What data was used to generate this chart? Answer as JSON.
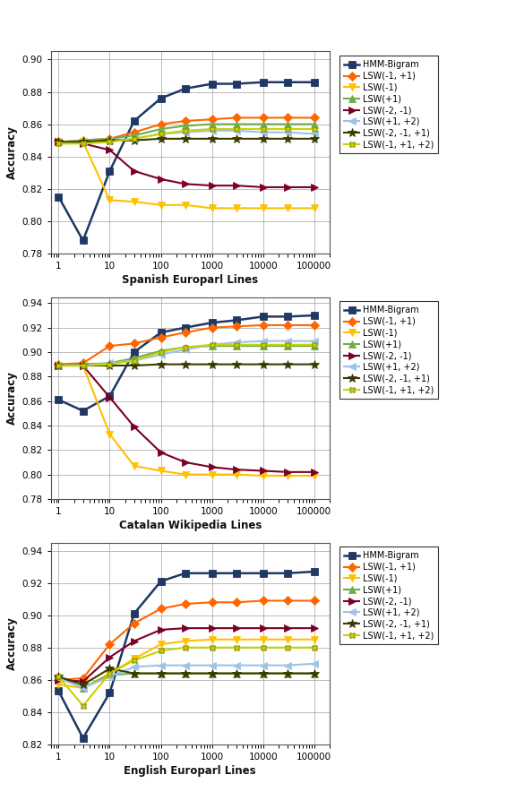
{
  "x_values": [
    1,
    3,
    10,
    30,
    100,
    300,
    1000,
    3000,
    10000,
    30000,
    100000
  ],
  "subplot1": {
    "xlabel": "Spanish Europarl Lines",
    "ylim": [
      0.78,
      0.905
    ],
    "yticks": [
      0.78,
      0.8,
      0.82,
      0.84,
      0.86,
      0.88,
      0.9
    ],
    "data": {
      "HMM-Bigram": [
        0.815,
        0.788,
        0.831,
        0.862,
        0.876,
        0.882,
        0.885,
        0.885,
        0.886,
        0.886,
        0.886
      ],
      "LSW(-1, +1)": [
        0.849,
        0.85,
        0.851,
        0.855,
        0.86,
        0.862,
        0.863,
        0.864,
        0.864,
        0.864,
        0.864
      ],
      "LSW(-1)": [
        0.849,
        0.849,
        0.813,
        0.812,
        0.81,
        0.81,
        0.808,
        0.808,
        0.808,
        0.808,
        0.808
      ],
      "LSW(+1)": [
        0.849,
        0.85,
        0.851,
        0.853,
        0.857,
        0.859,
        0.86,
        0.86,
        0.86,
        0.86,
        0.86
      ],
      "LSW(-2, -1)": [
        0.849,
        0.848,
        0.844,
        0.831,
        0.826,
        0.823,
        0.822,
        0.822,
        0.821,
        0.821,
        0.821
      ],
      "LSW(+1, +2)": [
        0.849,
        0.849,
        0.85,
        0.851,
        0.854,
        0.855,
        0.856,
        0.856,
        0.855,
        0.855,
        0.854
      ],
      "LSW(-2, -1, +1)": [
        0.849,
        0.849,
        0.85,
        0.85,
        0.851,
        0.851,
        0.851,
        0.851,
        0.851,
        0.851,
        0.851
      ],
      "LSW(-1, +1, +2)": [
        0.848,
        0.848,
        0.849,
        0.851,
        0.854,
        0.856,
        0.857,
        0.857,
        0.857,
        0.857,
        0.857
      ]
    }
  },
  "subplot2": {
    "xlabel": "Catalan Wikipedia Lines",
    "ylim": [
      0.78,
      0.945
    ],
    "yticks": [
      0.78,
      0.8,
      0.82,
      0.84,
      0.86,
      0.88,
      0.9,
      0.92,
      0.94
    ],
    "data": {
      "HMM-Bigram": [
        0.861,
        0.852,
        0.864,
        0.9,
        0.916,
        0.92,
        0.924,
        0.926,
        0.929,
        0.929,
        0.93
      ],
      "LSW(-1, +1)": [
        0.89,
        0.891,
        0.905,
        0.907,
        0.912,
        0.916,
        0.92,
        0.921,
        0.922,
        0.922,
        0.922
      ],
      "LSW(-1)": [
        0.889,
        0.889,
        0.833,
        0.807,
        0.803,
        0.8,
        0.8,
        0.8,
        0.799,
        0.799,
        0.799
      ],
      "LSW(+1)": [
        0.889,
        0.89,
        0.891,
        0.895,
        0.901,
        0.904,
        0.905,
        0.905,
        0.905,
        0.905,
        0.905
      ],
      "LSW(-2, -1)": [
        0.889,
        0.889,
        0.863,
        0.839,
        0.818,
        0.81,
        0.806,
        0.804,
        0.803,
        0.802,
        0.802
      ],
      "LSW(+1, +2)": [
        0.889,
        0.889,
        0.891,
        0.893,
        0.898,
        0.902,
        0.906,
        0.908,
        0.909,
        0.909,
        0.909
      ],
      "LSW(-2, -1, +1)": [
        0.889,
        0.889,
        0.889,
        0.889,
        0.89,
        0.89,
        0.89,
        0.89,
        0.89,
        0.89,
        0.89
      ],
      "LSW(-1, +1, +2)": [
        0.889,
        0.889,
        0.89,
        0.893,
        0.9,
        0.904,
        0.906,
        0.906,
        0.906,
        0.906,
        0.906
      ]
    }
  },
  "subplot3": {
    "xlabel": "English Europarl Lines",
    "ylim": [
      0.82,
      0.945
    ],
    "yticks": [
      0.82,
      0.84,
      0.86,
      0.88,
      0.9,
      0.92,
      0.94
    ],
    "data": {
      "HMM-Bigram": [
        0.853,
        0.824,
        0.852,
        0.901,
        0.921,
        0.926,
        0.926,
        0.926,
        0.926,
        0.926,
        0.927
      ],
      "LSW(-1, +1)": [
        0.86,
        0.861,
        0.882,
        0.895,
        0.904,
        0.907,
        0.908,
        0.908,
        0.909,
        0.909,
        0.909
      ],
      "LSW(-1)": [
        0.857,
        0.855,
        0.864,
        0.873,
        0.882,
        0.884,
        0.885,
        0.885,
        0.885,
        0.885,
        0.885
      ],
      "LSW(+1)": [
        0.862,
        0.855,
        0.863,
        0.864,
        0.864,
        0.864,
        0.864,
        0.864,
        0.864,
        0.864,
        0.864
      ],
      "LSW(-2, -1)": [
        0.86,
        0.859,
        0.874,
        0.884,
        0.891,
        0.892,
        0.892,
        0.892,
        0.892,
        0.892,
        0.892
      ],
      "LSW(+1, +2)": [
        0.861,
        0.855,
        0.862,
        0.868,
        0.869,
        0.869,
        0.869,
        0.869,
        0.869,
        0.869,
        0.87
      ],
      "LSW(-2, -1, +1)": [
        0.862,
        0.857,
        0.867,
        0.864,
        0.864,
        0.864,
        0.864,
        0.864,
        0.864,
        0.864,
        0.864
      ],
      "LSW(-1, +1, +2)": [
        0.862,
        0.844,
        0.864,
        0.872,
        0.878,
        0.88,
        0.88,
        0.88,
        0.88,
        0.88,
        0.88
      ]
    }
  },
  "series_order": [
    "HMM-Bigram",
    "LSW(-1, +1)",
    "LSW(-1)",
    "LSW(+1)",
    "LSW(-2, -1)",
    "LSW(+1, +2)",
    "LSW(-2, -1, +1)",
    "LSW(-1, +1, +2)"
  ],
  "marker_styles": {
    "HMM-Bigram": {
      "marker": "s",
      "color": "#1f3864",
      "mfc": "#1f3864",
      "mec": "#1f3864",
      "ms": 5.5,
      "lw": 1.8
    },
    "LSW(-1, +1)": {
      "marker": "D",
      "color": "#ff6600",
      "mfc": "#ff6600",
      "mec": "#ff6600",
      "ms": 5.0,
      "lw": 1.5
    },
    "LSW(-1)": {
      "marker": "v",
      "color": "#ffc000",
      "mfc": "#ffc000",
      "mec": "#ffc000",
      "ms": 6.0,
      "lw": 1.5
    },
    "LSW(+1)": {
      "marker": "^",
      "color": "#70ad47",
      "mfc": "#70ad47",
      "mec": "#70ad47",
      "ms": 5.5,
      "lw": 1.5
    },
    "LSW(-2, -1)": {
      "marker": ">",
      "color": "#7b0026",
      "mfc": "#7b0026",
      "mec": "#7b0026",
      "ms": 5.5,
      "lw": 1.5
    },
    "LSW(+1, +2)": {
      "marker": "<",
      "color": "#9dc3e6",
      "mfc": "#9dc3e6",
      "mec": "#9dc3e6",
      "ms": 5.5,
      "lw": 1.5
    },
    "LSW(-2, -1, +1)": {
      "marker": "*",
      "color": "#3b3b00",
      "mfc": "#3b3b00",
      "mec": "#3b3b00",
      "ms": 7.0,
      "lw": 1.5
    },
    "LSW(-1, +1, +2)": {
      "marker": "X",
      "color": "#c8d300",
      "mfc": "#c8d300",
      "mec": "#808000",
      "ms": 5.0,
      "lw": 1.5
    }
  }
}
